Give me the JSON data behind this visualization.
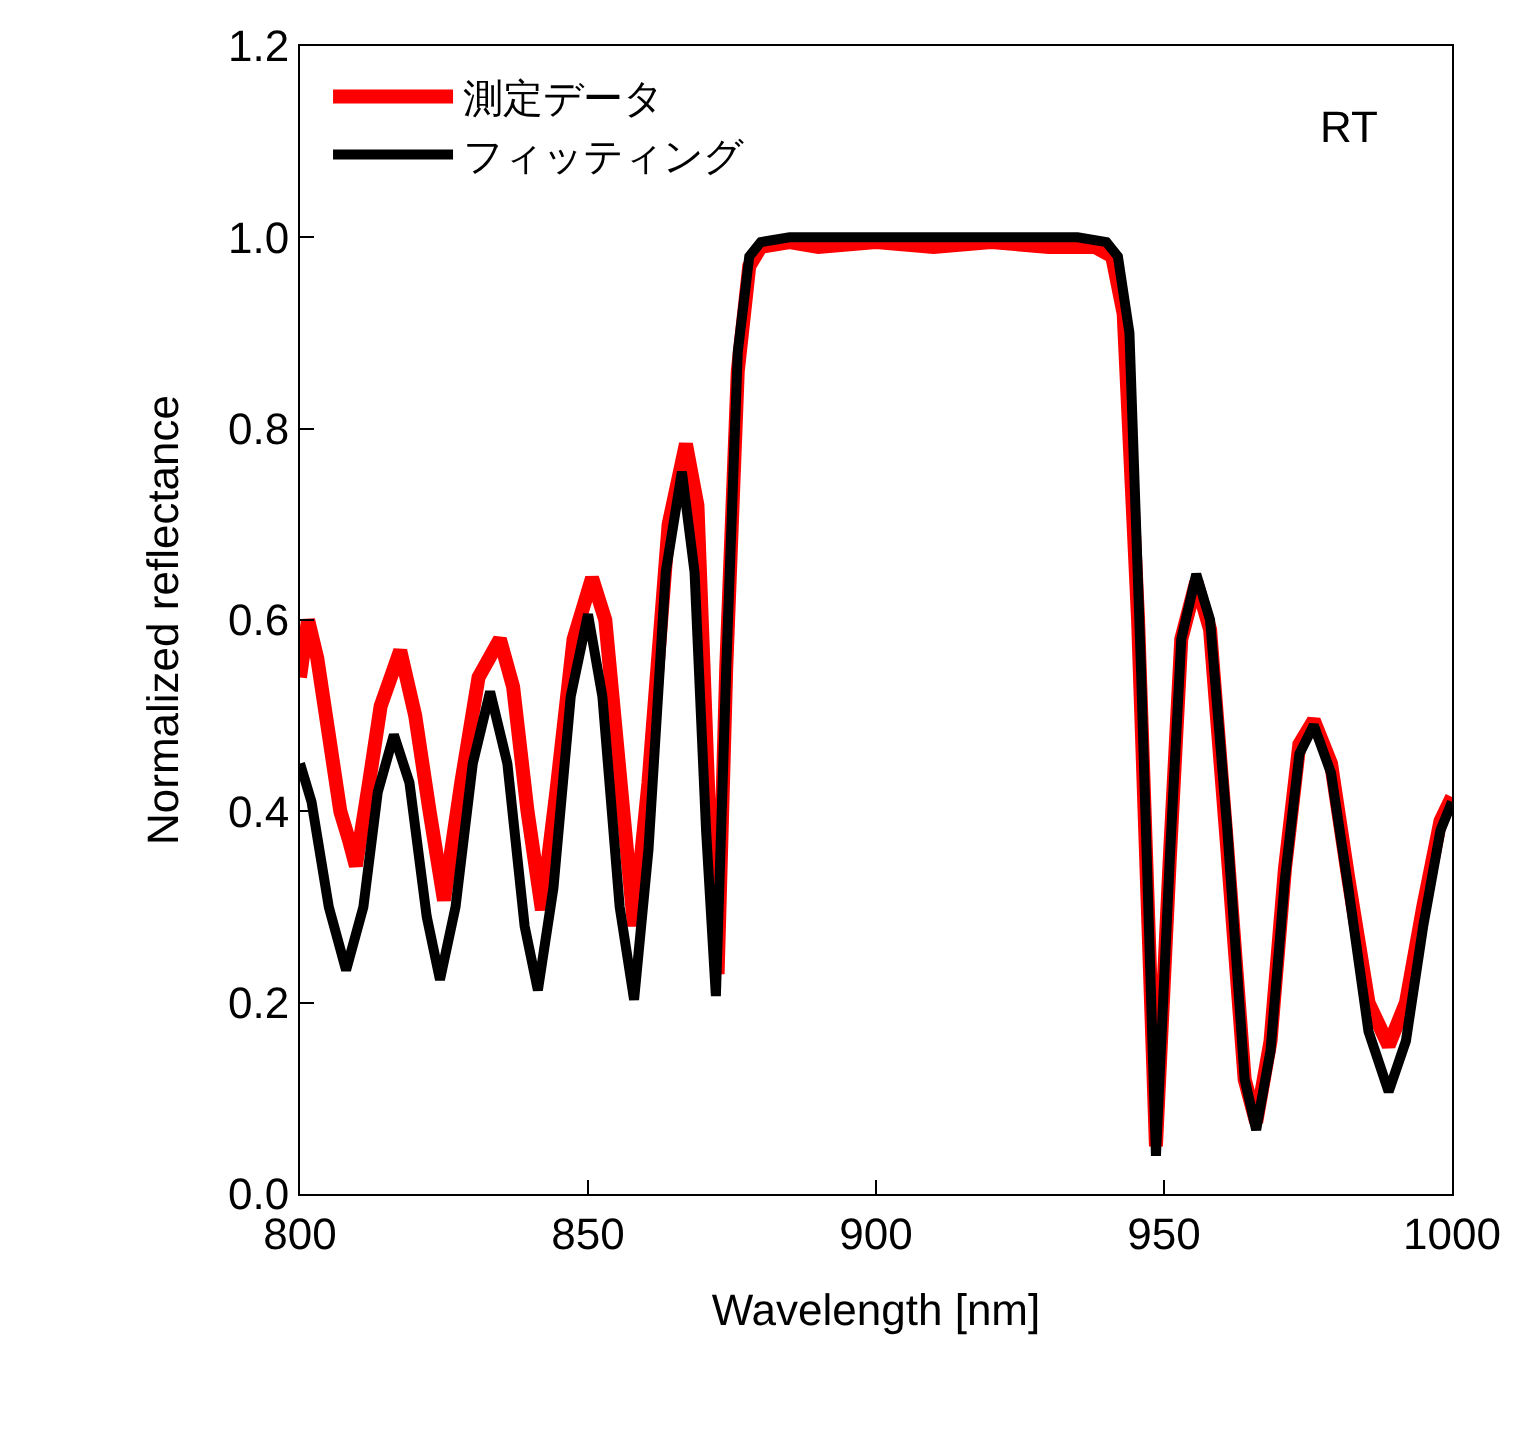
{
  "chart_data": {
    "type": "line",
    "xlabel": "Wavelength [nm]",
    "ylabel": "Normalized reflectance",
    "annotations": [
      "RT"
    ],
    "xlim": [
      800,
      1000
    ],
    "xticks": [
      800,
      850,
      900,
      950,
      1000
    ],
    "ylim": [
      0,
      1.2
    ],
    "yticks": [
      {
        "value": 0,
        "label": "0.0"
      },
      {
        "value": 0.2,
        "label": "0.2"
      },
      {
        "value": 0.4,
        "label": "0.4"
      },
      {
        "value": 0.6,
        "label": "0.6"
      },
      {
        "value": 0.8,
        "label": "0.8"
      },
      {
        "value": 1,
        "label": "1.0"
      },
      {
        "value": 1.2,
        "label": "1.2"
      }
    ],
    "grid": false,
    "legend": "top left",
    "marker": "none",
    "line_style": "solid",
    "series": [
      {
        "name": "測定データ",
        "color": "#ff0000",
        "x": [
          800,
          801.4,
          803,
          805,
          807,
          808.5,
          809.7,
          812,
          814,
          817.4,
          820,
          822.5,
          825,
          828,
          831,
          834.7,
          837,
          839.5,
          842,
          844.5,
          847.5,
          850.7,
          853,
          855.5,
          858,
          860.5,
          864,
          867,
          869,
          871,
          872.5,
          874,
          876,
          878,
          880,
          885,
          890,
          900,
          910,
          920,
          930,
          938,
          941,
          943,
          945.5,
          948.6,
          951,
          953,
          955.6,
          958,
          961,
          964,
          966,
          968.5,
          971,
          973.5,
          976,
          979,
          982,
          985.5,
          989,
          992,
          995,
          998,
          1000
        ],
        "values": [
          0.54,
          0.6,
          0.56,
          0.48,
          0.4,
          0.37,
          0.343,
          0.43,
          0.51,
          0.568,
          0.5,
          0.4,
          0.307,
          0.43,
          0.54,
          0.58,
          0.53,
          0.4,
          0.297,
          0.42,
          0.58,
          0.644,
          0.6,
          0.44,
          0.28,
          0.43,
          0.7,
          0.784,
          0.72,
          0.4,
          0.23,
          0.55,
          0.86,
          0.97,
          0.99,
          0.995,
          0.99,
          0.995,
          0.99,
          0.995,
          0.99,
          0.99,
          0.98,
          0.92,
          0.6,
          0.05,
          0.35,
          0.58,
          0.64,
          0.59,
          0.36,
          0.12,
          0.075,
          0.16,
          0.34,
          0.47,
          0.495,
          0.45,
          0.33,
          0.2,
          0.155,
          0.2,
          0.3,
          0.39,
          0.415
        ]
      },
      {
        "name": "フィッティング",
        "color": "#000000",
        "x": [
          800,
          802,
          805,
          808,
          811,
          813.5,
          816.3,
          819,
          822,
          824.3,
          827,
          830,
          833,
          836,
          839,
          841.3,
          844,
          847,
          850,
          852.5,
          855.5,
          858,
          860.5,
          863.5,
          866.3,
          868.5,
          870.5,
          872.2,
          874,
          876,
          878,
          880,
          885,
          900,
          920,
          935,
          940,
          942,
          944,
          946,
          948.6,
          951,
          953,
          955.6,
          958,
          961,
          964,
          966,
          968.5,
          971,
          973.5,
          976,
          979,
          982,
          985.5,
          989,
          992,
          995,
          998,
          1000
        ],
        "values": [
          0.45,
          0.41,
          0.3,
          0.234,
          0.3,
          0.42,
          0.48,
          0.43,
          0.29,
          0.224,
          0.3,
          0.45,
          0.525,
          0.45,
          0.28,
          0.213,
          0.32,
          0.52,
          0.606,
          0.52,
          0.3,
          0.203,
          0.36,
          0.65,
          0.755,
          0.65,
          0.38,
          0.207,
          0.55,
          0.88,
          0.98,
          0.995,
          1,
          1,
          1,
          1,
          0.995,
          0.98,
          0.9,
          0.55,
          0.04,
          0.35,
          0.58,
          0.648,
          0.6,
          0.38,
          0.12,
          0.067,
          0.15,
          0.33,
          0.46,
          0.49,
          0.44,
          0.32,
          0.17,
          0.107,
          0.16,
          0.28,
          0.38,
          0.41
        ]
      }
    ]
  }
}
